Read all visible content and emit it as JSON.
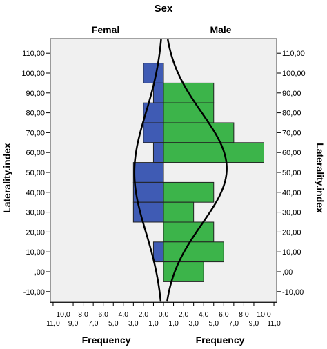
{
  "chart_data": {
    "type": "bar",
    "subtype": "back-to-back histogram with normal curves",
    "title": "Sex",
    "ylabel_left": "Laterality.index",
    "ylabel_right": "Laterality.index",
    "xlabel_left": "Frequency",
    "xlabel_right": "Frequency",
    "ylim": [
      -15,
      117
    ],
    "y_ticks": [
      "-10,00",
      ",00",
      "10,00",
      "20,00",
      "30,00",
      "40,00",
      "50,00",
      "60,00",
      "70,00",
      "80,00",
      "90,00",
      "100,00",
      "110,00"
    ],
    "y_tick_values": [
      -10,
      0,
      10,
      20,
      30,
      40,
      50,
      60,
      70,
      80,
      90,
      100,
      110
    ],
    "x_ticks_upper": [
      "10,0",
      "8,0",
      "6,0",
      "4,0",
      "2,0",
      "0,0",
      "2,0",
      "4,0",
      "6,0",
      "8,0",
      "10,0"
    ],
    "x_ticks_upper_values": [
      -10,
      -8,
      -6,
      -4,
      -2,
      0,
      2,
      4,
      6,
      8,
      10
    ],
    "x_ticks_lower": [
      "11,0",
      "9,0",
      "7,0",
      "5,0",
      "3,0",
      "1,0",
      "1,0",
      "3,0",
      "5,0",
      "7,0",
      "9,0",
      "11,0"
    ],
    "x_ticks_lower_values": [
      -11,
      -9,
      -7,
      -5,
      -3,
      -1,
      1,
      3,
      5,
      7,
      9,
      11
    ],
    "xlim": [
      -11,
      11
    ],
    "panels": [
      {
        "name": "Femal",
        "color": "#3f5bb4",
        "bins": [
          {
            "y0": 95,
            "y1": 105,
            "freq": 2
          },
          {
            "y0": 85,
            "y1": 95,
            "freq": 1
          },
          {
            "y0": 75,
            "y1": 85,
            "freq": 2
          },
          {
            "y0": 65,
            "y1": 75,
            "freq": 2
          },
          {
            "y0": 55,
            "y1": 65,
            "freq": 1
          },
          {
            "y0": 45,
            "y1": 55,
            "freq": 3
          },
          {
            "y0": 35,
            "y1": 45,
            "freq": 3
          },
          {
            "y0": 25,
            "y1": 35,
            "freq": 3
          },
          {
            "y0": 5,
            "y1": 15,
            "freq": 1
          }
        ],
        "normal_curve": {
          "mean": 50,
          "sd": 30,
          "peak": 2.9
        }
      },
      {
        "name": "Male",
        "color": "#3cb44a",
        "bins": [
          {
            "y0": 85,
            "y1": 95,
            "freq": 5
          },
          {
            "y0": 75,
            "y1": 85,
            "freq": 5
          },
          {
            "y0": 65,
            "y1": 75,
            "freq": 7
          },
          {
            "y0": 55,
            "y1": 65,
            "freq": 10
          },
          {
            "y0": 35,
            "y1": 45,
            "freq": 5
          },
          {
            "y0": 25,
            "y1": 35,
            "freq": 3
          },
          {
            "y0": 15,
            "y1": 25,
            "freq": 5
          },
          {
            "y0": 5,
            "y1": 15,
            "freq": 6
          },
          {
            "y0": -5,
            "y1": 5,
            "freq": 4
          }
        ],
        "normal_curve": {
          "mean": 52,
          "sd": 28,
          "peak": 6.3
        }
      }
    ],
    "grid": false,
    "background": "#f0f0f0"
  }
}
